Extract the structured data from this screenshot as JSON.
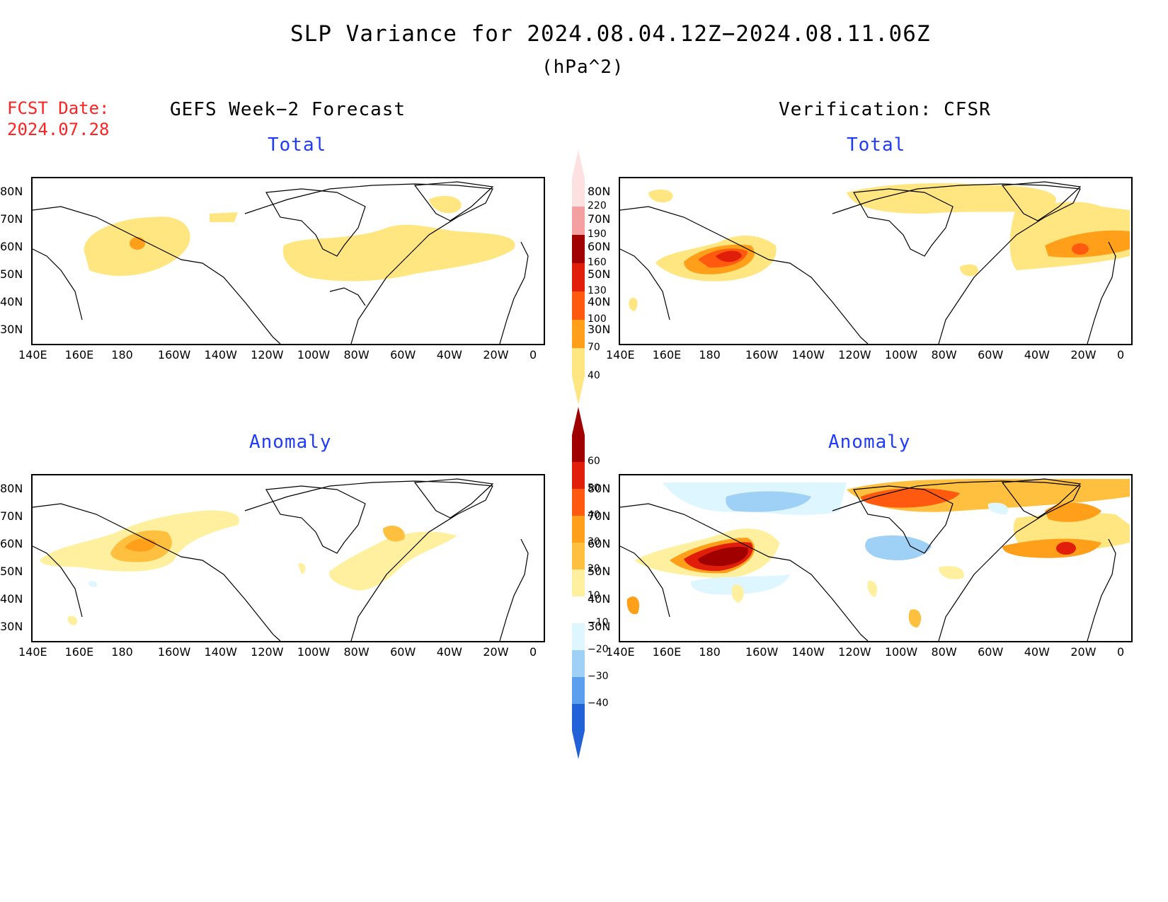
{
  "title": "SLP Variance for 2024.08.04.12Z−2024.08.11.06Z",
  "units": "(hPa^2)",
  "fcst_date_label": "FCST Date:",
  "fcst_date": "2024.07.28",
  "left_header": "GEFS Week−2 Forecast",
  "right_header": "Verification: CFSR",
  "panels": {
    "fcst_total": "Total",
    "verif_total": "Total",
    "fcst_anom": "Anomaly",
    "verif_anom": "Anomaly"
  },
  "lon_labels": [
    "140E",
    "160E",
    "180",
    "160W",
    "140W",
    "120W",
    "100W",
    "80W",
    "60W",
    "40W",
    "20W",
    "0"
  ],
  "lat_labels": [
    "80N",
    "70N",
    "60N",
    "50N",
    "40N",
    "30N"
  ],
  "colorbar_total": {
    "levels": [
      "220",
      "190",
      "160",
      "130",
      "100",
      "70",
      "40"
    ],
    "colors": [
      "#fde0e0",
      "#f4a0a0",
      "#a00000",
      "#e01e0a",
      "#ff5a0f",
      "#ff9f1a",
      "#ffe680"
    ]
  },
  "colorbar_anom": {
    "levels": [
      "60",
      "50",
      "40",
      "30",
      "20",
      "10",
      "−10",
      "−20",
      "−30",
      "−40"
    ],
    "colors": [
      "#a00000",
      "#e01e0a",
      "#ff5a0f",
      "#ff9f1a",
      "#ffc040",
      "#fff0a0",
      "#ffffff",
      "#ddf6ff",
      "#9fd0f5",
      "#5aa0ee",
      "#2262d8"
    ]
  }
}
